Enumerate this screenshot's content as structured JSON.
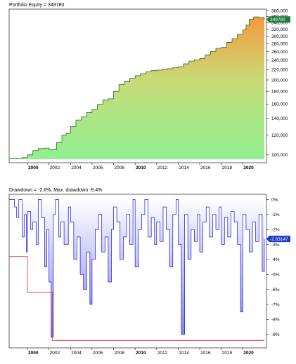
{
  "chart_data": [
    {
      "type": "area",
      "title": "Portfolio Equity = 349780",
      "current_value_label": "349780",
      "y_scale": "log",
      "ylim": [
        93000,
        385000
      ],
      "xlim": [
        1998.3,
        2022.2
      ],
      "y_ticks": [
        {
          "v": 100000,
          "label": "100,000"
        },
        {
          "v": 120000,
          "label": "120,000"
        },
        {
          "v": 140000,
          "label": "140,000"
        },
        {
          "v": 160000,
          "label": "160,000"
        },
        {
          "v": 180000,
          "label": "180,000"
        },
        {
          "v": 200000,
          "label": "200,000"
        },
        {
          "v": 220000,
          "label": "220,000"
        },
        {
          "v": 240000,
          "label": "240,000"
        },
        {
          "v": 260000,
          "label": "260,000"
        },
        {
          "v": 280000,
          "label": "280,000"
        },
        {
          "v": 300000,
          "label": "300,000"
        },
        {
          "v": 320000,
          "label": "320,000"
        },
        {
          "v": 340000,
          "label": "340,000"
        },
        {
          "v": 360000,
          "label": "360,000"
        },
        {
          "v": 380000,
          "label": "380,000"
        }
      ],
      "x_ticks": [
        {
          "v": 2000,
          "label": "2000",
          "bold": true
        },
        {
          "v": 2002,
          "label": "2002",
          "bold": false
        },
        {
          "v": 2004,
          "label": "2004",
          "bold": false
        },
        {
          "v": 2006,
          "label": "2006",
          "bold": false
        },
        {
          "v": 2008,
          "label": "2008",
          "bold": false
        },
        {
          "v": 2010,
          "label": "2010",
          "bold": true
        },
        {
          "v": 2012,
          "label": "2012",
          "bold": false
        },
        {
          "v": 2014,
          "label": "2014",
          "bold": false
        },
        {
          "v": 2016,
          "label": "2016",
          "bold": false
        },
        {
          "v": 2018,
          "label": "2018",
          "bold": false
        },
        {
          "v": 2020,
          "label": "2020",
          "bold": true
        }
      ],
      "colors": {
        "fill_top": "#f59a3c",
        "fill_mid": "#c8dc78",
        "fill_bottom": "#90f090",
        "line": "#2e6b2e",
        "tag": "#1d7a3a"
      },
      "x": [
        1998.3,
        1999.0,
        1999.5,
        2000.0,
        2000.5,
        2001.0,
        2001.6,
        2002.0,
        2002.7,
        2003.2,
        2003.6,
        2004.0,
        2004.5,
        2005.0,
        2005.5,
        2006.0,
        2006.5,
        2007.0,
        2007.5,
        2008.0,
        2008.5,
        2009.0,
        2009.5,
        2010.0,
        2010.5,
        2011.0,
        2011.5,
        2012.0,
        2012.5,
        2013.0,
        2013.5,
        2014.0,
        2014.5,
        2015.0,
        2015.5,
        2016.0,
        2016.5,
        2017.0,
        2017.5,
        2018.0,
        2018.5,
        2019.0,
        2019.5,
        2020.0,
        2020.3,
        2020.6,
        2021.0,
        2021.5,
        2022.0
      ],
      "y": [
        97000,
        96500,
        97500,
        100000,
        104000,
        106000,
        106500,
        105000,
        112000,
        120000,
        122000,
        130000,
        138000,
        142000,
        148000,
        152000,
        160000,
        166000,
        168000,
        180000,
        192000,
        197000,
        203000,
        208000,
        212000,
        216000,
        218000,
        219000,
        221000,
        222000,
        224000,
        226000,
        232000,
        238000,
        241000,
        244000,
        252000,
        260000,
        268000,
        270000,
        283000,
        293000,
        305000,
        318000,
        332000,
        350000,
        358000,
        356000,
        349780
      ]
    },
    {
      "type": "area",
      "title": "Drawdown = -2.6%, Max. drawdown -9.4%",
      "current_value_label": "-2.63147",
      "ylim": [
        -9.9,
        0.35
      ],
      "xlim": [
        1998.3,
        2022.2
      ],
      "y_ticks": [
        {
          "v": 0,
          "label": "0%"
        },
        {
          "v": -1,
          "label": "-1%"
        },
        {
          "v": -2,
          "label": "-2%"
        },
        {
          "v": -3,
          "label": "-3%"
        },
        {
          "v": -4,
          "label": "-4%"
        },
        {
          "v": -5,
          "label": "-5%"
        },
        {
          "v": -6,
          "label": "-6%"
        },
        {
          "v": -7,
          "label": "-7%"
        },
        {
          "v": -8,
          "label": "-8%"
        },
        {
          "v": -9,
          "label": "-9%"
        }
      ],
      "x_ticks": [
        {
          "v": 2000,
          "label": "2000",
          "bold": true
        },
        {
          "v": 2002,
          "label": "2002",
          "bold": false
        },
        {
          "v": 2004,
          "label": "2004",
          "bold": false
        },
        {
          "v": 2006,
          "label": "2006",
          "bold": false
        },
        {
          "v": 2008,
          "label": "2008",
          "bold": false
        },
        {
          "v": 2010,
          "label": "2010",
          "bold": true
        },
        {
          "v": 2012,
          "label": "2012",
          "bold": false
        },
        {
          "v": 2014,
          "label": "2014",
          "bold": false
        },
        {
          "v": 2016,
          "label": "2016",
          "bold": false
        },
        {
          "v": 2018,
          "label": "2018",
          "bold": false
        },
        {
          "v": 2020,
          "label": "2020",
          "bold": true
        }
      ],
      "colors": {
        "line": "#1010e0",
        "fill_top": "#ffffff",
        "fill_bottom": "#1a1ae0",
        "max_line": "#e03030",
        "tag": "#1a3ad0"
      },
      "series": [
        {
          "name": "drawdown",
          "x": [
            1998.3,
            1998.8,
            1999.0,
            1999.2,
            1999.5,
            1999.7,
            1999.9,
            2000.0,
            2000.3,
            2000.5,
            2000.8,
            2001.0,
            2001.3,
            2001.6,
            2001.8,
            2002.0,
            2002.2,
            2002.4,
            2002.6,
            2002.9,
            2003.1,
            2003.4,
            2003.8,
            2004.0,
            2004.3,
            2004.6,
            2004.9,
            2005.2,
            2005.5,
            2005.8,
            2006.0,
            2006.3,
            2006.6,
            2006.9,
            2007.2,
            2007.5,
            2007.8,
            2008.0,
            2008.3,
            2008.6,
            2008.9,
            2009.2,
            2009.5,
            2009.8,
            2010.0,
            2010.3,
            2010.6,
            2010.9,
            2011.2,
            2011.5,
            2011.8,
            2012.0,
            2012.3,
            2012.6,
            2012.9,
            2013.2,
            2013.5,
            2013.8,
            2014.0,
            2014.3,
            2014.6,
            2014.9,
            2015.2,
            2015.5,
            2015.8,
            2016.0,
            2016.3,
            2016.6,
            2016.9,
            2017.2,
            2017.5,
            2017.8,
            2018.0,
            2018.3,
            2018.6,
            2018.9,
            2019.2,
            2019.5,
            2019.8,
            2020.0,
            2020.3,
            2020.6,
            2020.9,
            2021.2,
            2021.5,
            2021.8,
            2022.0
          ],
          "y": [
            0,
            -0.5,
            -1.2,
            0,
            -2.5,
            -1.0,
            -3.5,
            -0.8,
            -2.0,
            -1.5,
            -3.0,
            0,
            -1.2,
            -4.5,
            -2.0,
            -5.5,
            -9.2,
            -1.0,
            0,
            -2.5,
            -1.5,
            -3.0,
            -0.5,
            -1.5,
            -4.0,
            -2.5,
            -5.0,
            -6.0,
            -3.5,
            -7.0,
            -4.0,
            -2.0,
            -1.0,
            -3.5,
            -2.5,
            -5.5,
            -2.0,
            -0.5,
            -1.5,
            -4.0,
            -2.5,
            -1.0,
            -3.0,
            0,
            -4.5,
            -2.0,
            -1.0,
            0,
            -2.5,
            -1.2,
            -3.0,
            -1.5,
            -2.8,
            -0.5,
            -2.0,
            -4.5,
            -1.0,
            0,
            -3.0,
            -9.0,
            -1.0,
            -4.0,
            -2.0,
            -2.8,
            -1.0,
            -3.5,
            -1.5,
            -0.5,
            -2.5,
            -1.0,
            -2.0,
            -0.5,
            -3.0,
            -1.2,
            -2.5,
            -0.8,
            -1.5,
            -3.0,
            -7.5,
            -1.0,
            -2.0,
            -3.5,
            -1.5,
            -2.8,
            -1.0,
            -4.8,
            -2.63
          ]
        },
        {
          "name": "max drawdown",
          "x": [
            1998.3,
            2000.0,
            2000.0,
            2002.3,
            2002.3,
            2022.0
          ],
          "y": [
            -3.8,
            -3.8,
            -6.2,
            -6.2,
            -9.4,
            -9.4
          ]
        }
      ]
    }
  ]
}
